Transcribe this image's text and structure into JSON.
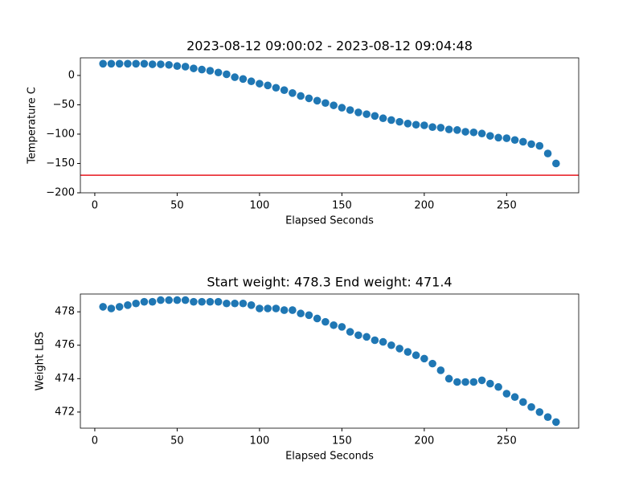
{
  "chart_data": [
    {
      "type": "scatter",
      "title": "2023-08-12 09:00:02 - 2023-08-12 09:04:48",
      "xlabel": "Elapsed Seconds",
      "ylabel": "Temperature C",
      "color": "#1f77b4",
      "x": [
        5,
        10,
        15,
        20,
        25,
        30,
        35,
        40,
        45,
        50,
        55,
        60,
        65,
        70,
        75,
        80,
        85,
        90,
        95,
        100,
        105,
        110,
        115,
        120,
        125,
        130,
        135,
        140,
        145,
        150,
        155,
        160,
        165,
        170,
        175,
        180,
        185,
        190,
        195,
        200,
        205,
        210,
        215,
        220,
        225,
        230,
        235,
        240,
        245,
        250,
        255,
        260,
        265,
        270,
        275,
        280
      ],
      "values": [
        20,
        20,
        20,
        20,
        20,
        20,
        19,
        19,
        18,
        16,
        15,
        12,
        10,
        8,
        5,
        2,
        -3,
        -6,
        -10,
        -14,
        -17,
        -21,
        -25,
        -30,
        -35,
        -39,
        -43,
        -47,
        -51,
        -55,
        -59,
        -63,
        -66,
        -69,
        -73,
        -76,
        -79,
        -82,
        -84,
        -85,
        -88,
        -89,
        -92,
        -93,
        -96,
        -97,
        -99,
        -103,
        -106,
        -107,
        -110,
        -113,
        -117,
        -120,
        -133,
        -150
      ],
      "xlim": [
        -8.75,
        293.75
      ],
      "xticks": [
        0,
        50,
        100,
        150,
        200,
        250
      ],
      "ylim": [
        -200,
        30
      ],
      "yticks": [
        {
          "value": -200,
          "label": "−200"
        },
        {
          "value": -150,
          "label": "−150"
        },
        {
          "value": -100,
          "label": "−100"
        },
        {
          "value": -50,
          "label": "−50"
        },
        0
      ],
      "hline": {
        "value": -170,
        "color": "#e8141c"
      }
    },
    {
      "type": "scatter",
      "title": "Start weight: 478.3 End weight: 471.4",
      "xlabel": "Elapsed Seconds",
      "ylabel": "Weight LBS",
      "color": "#1f77b4",
      "x": [
        5,
        10,
        15,
        20,
        25,
        30,
        35,
        40,
        45,
        50,
        55,
        60,
        65,
        70,
        75,
        80,
        85,
        90,
        95,
        100,
        105,
        110,
        115,
        120,
        125,
        130,
        135,
        140,
        145,
        150,
        155,
        160,
        165,
        170,
        175,
        180,
        185,
        190,
        195,
        200,
        205,
        210,
        215,
        220,
        225,
        230,
        235,
        240,
        245,
        250,
        255,
        260,
        265,
        270,
        275,
        280
      ],
      "values": [
        478.3,
        478.2,
        478.3,
        478.4,
        478.5,
        478.6,
        478.6,
        478.7,
        478.7,
        478.7,
        478.7,
        478.6,
        478.6,
        478.6,
        478.6,
        478.5,
        478.5,
        478.5,
        478.4,
        478.2,
        478.2,
        478.2,
        478.1,
        478.1,
        477.9,
        477.8,
        477.6,
        477.4,
        477.2,
        477.1,
        476.8,
        476.6,
        476.5,
        476.3,
        476.2,
        476.0,
        475.8,
        475.6,
        475.4,
        475.2,
        474.9,
        474.5,
        474.0,
        473.8,
        473.8,
        473.8,
        473.9,
        473.7,
        473.5,
        473.1,
        472.9,
        472.6,
        472.3,
        472.0,
        471.7,
        471.4
      ],
      "xlim": [
        -8.75,
        293.75
      ],
      "xticks": [
        0,
        50,
        100,
        150,
        200,
        250
      ],
      "ylim": [
        471.035,
        479.065
      ],
      "yticks": [
        472,
        474,
        476,
        478
      ]
    }
  ]
}
